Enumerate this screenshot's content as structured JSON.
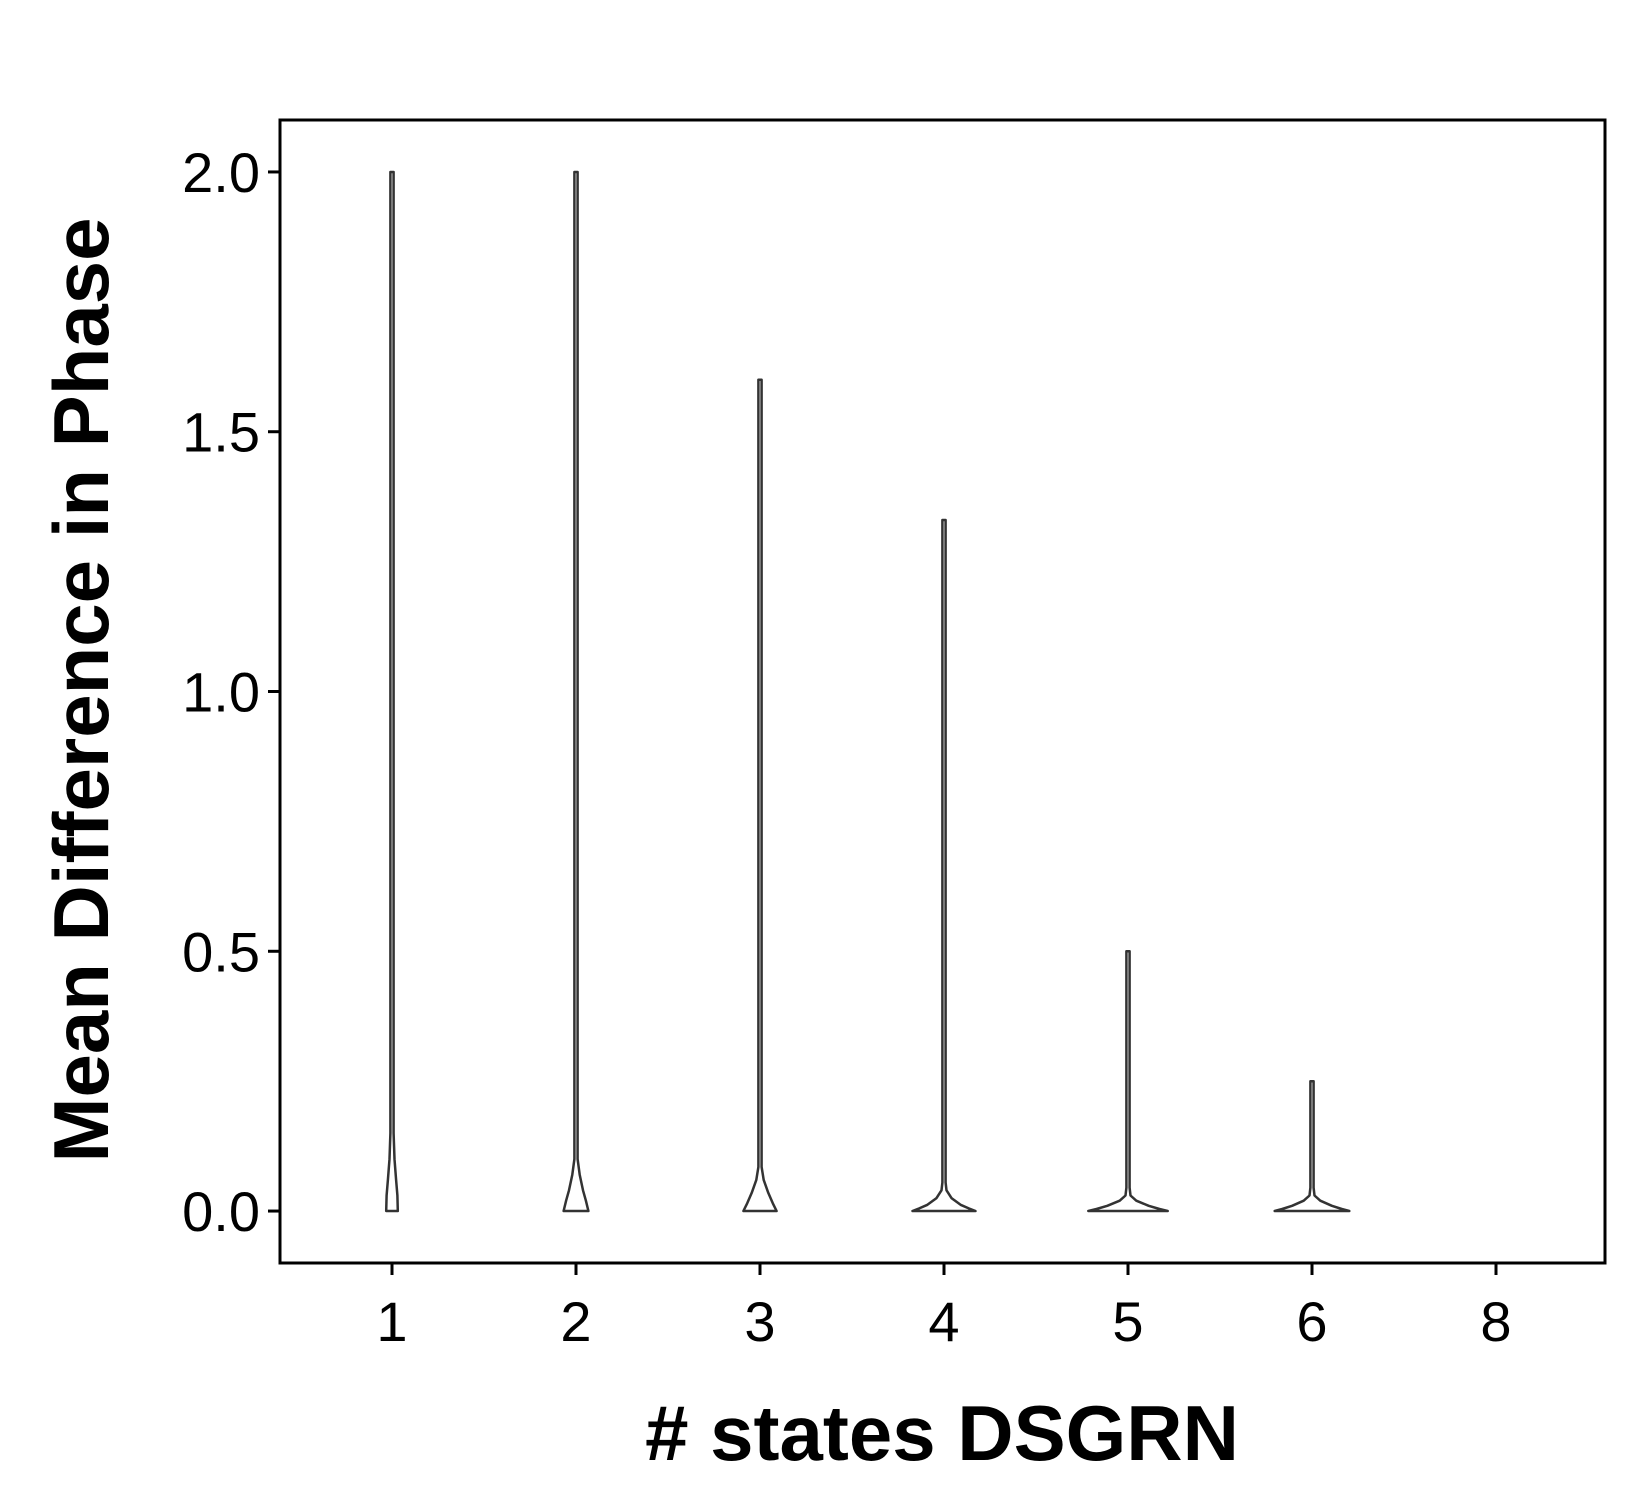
{
  "chart_data": {
    "type": "violin",
    "title": "",
    "xlabel": "# states DSGRN",
    "ylabel": "Mean Difference in Phase",
    "categories": [
      "1",
      "2",
      "3",
      "4",
      "5",
      "6",
      "8"
    ],
    "ylim": [
      -0.1,
      2.1
    ],
    "yticks": [
      0.0,
      0.5,
      1.0,
      1.5,
      2.0
    ],
    "ytick_labels": [
      "0.0",
      "0.5",
      "1.0",
      "1.5",
      "2.0"
    ],
    "grid": false,
    "legend": "none",
    "colors": {
      "outline": "#333333",
      "axis": "#000000",
      "fill": "#ffffff"
    },
    "violins": [
      {
        "category": "1",
        "max": 2.0,
        "profile": [
          [
            0.0,
            0.07
          ],
          [
            0.03,
            0.065
          ],
          [
            0.06,
            0.05
          ],
          [
            0.1,
            0.03
          ],
          [
            0.15,
            0.012
          ],
          [
            0.2,
            0.004
          ],
          [
            0.3,
            0.002
          ],
          [
            1.5,
            0.003
          ],
          [
            2.0,
            0.001
          ]
        ]
      },
      {
        "category": "2",
        "max": 2.0,
        "profile": [
          [
            0.0,
            0.15
          ],
          [
            0.02,
            0.12
          ],
          [
            0.04,
            0.085
          ],
          [
            0.07,
            0.045
          ],
          [
            0.1,
            0.015
          ],
          [
            0.13,
            0.004
          ],
          [
            0.2,
            0.002
          ],
          [
            1.3,
            0.003
          ],
          [
            2.0,
            0.001
          ]
        ]
      },
      {
        "category": "3",
        "max": 1.6,
        "profile": [
          [
            0.0,
            0.2
          ],
          [
            0.015,
            0.155
          ],
          [
            0.035,
            0.1
          ],
          [
            0.06,
            0.045
          ],
          [
            0.085,
            0.014
          ],
          [
            0.11,
            0.004
          ],
          [
            0.2,
            0.002
          ],
          [
            1.0,
            0.004
          ],
          [
            1.6,
            0.001
          ]
        ]
      },
      {
        "category": "4",
        "max": 1.33,
        "profile": [
          [
            0.0,
            0.38
          ],
          [
            0.005,
            0.3
          ],
          [
            0.012,
            0.2
          ],
          [
            0.025,
            0.09
          ],
          [
            0.04,
            0.03
          ],
          [
            0.055,
            0.01
          ],
          [
            0.08,
            0.004
          ],
          [
            0.2,
            0.003
          ],
          [
            0.8,
            0.002
          ],
          [
            1.33,
            0.001
          ]
        ]
      },
      {
        "category": "5",
        "max": 0.5,
        "profile": [
          [
            0.0,
            0.48
          ],
          [
            0.004,
            0.38
          ],
          [
            0.01,
            0.25
          ],
          [
            0.02,
            0.1
          ],
          [
            0.03,
            0.03
          ],
          [
            0.045,
            0.01
          ],
          [
            0.1,
            0.005
          ],
          [
            0.25,
            0.006
          ],
          [
            0.4,
            0.003
          ],
          [
            0.5,
            0.001
          ]
        ]
      },
      {
        "category": "6",
        "max": 0.25,
        "profile": [
          [
            0.0,
            0.45
          ],
          [
            0.004,
            0.36
          ],
          [
            0.01,
            0.24
          ],
          [
            0.02,
            0.1
          ],
          [
            0.03,
            0.03
          ],
          [
            0.045,
            0.01
          ],
          [
            0.1,
            0.005
          ],
          [
            0.2,
            0.006
          ],
          [
            0.25,
            0.001
          ]
        ]
      },
      {
        "category": "8",
        "max": 0.0,
        "profile": []
      }
    ]
  }
}
